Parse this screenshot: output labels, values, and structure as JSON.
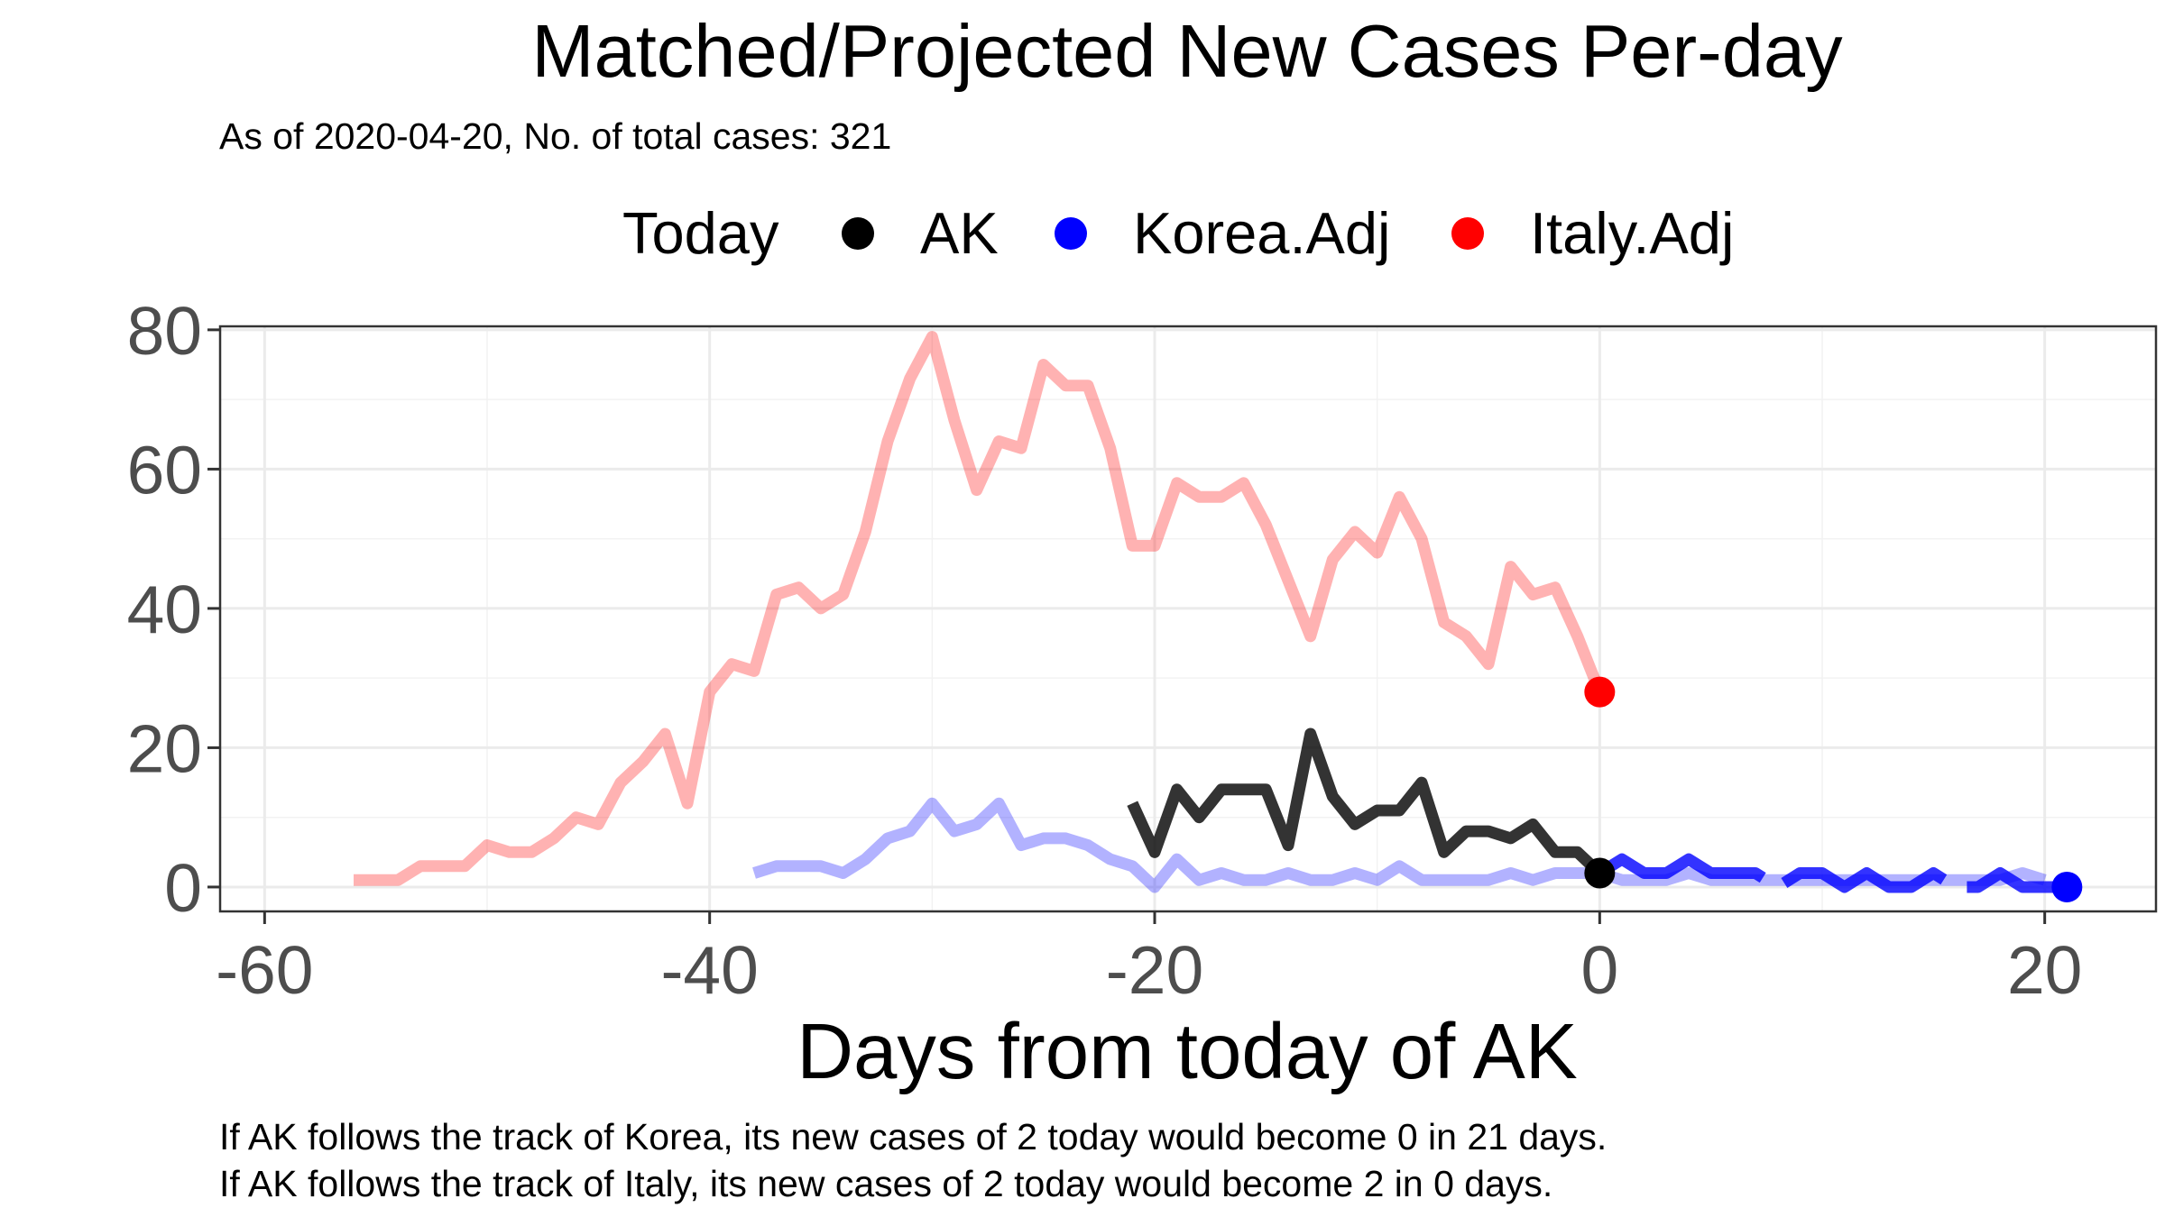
{
  "chart_data": {
    "type": "line",
    "title": "Matched/Projected New Cases Per-day",
    "subtitle": "As of 2020-04-20, No. of total cases: 321",
    "xlabel": "Days from today of AK",
    "ylabel": "",
    "xlim": [
      -62,
      25
    ],
    "ylim": [
      -3.5,
      80.5
    ],
    "x_ticks": [
      -60,
      -40,
      -20,
      0,
      20
    ],
    "x_tick_labels": [
      "-60",
      "-40",
      "-20",
      "0",
      "20"
    ],
    "y_ticks": [
      0,
      20,
      40,
      60,
      80
    ],
    "y_tick_labels": [
      "0",
      "20",
      "40",
      "60",
      "80"
    ],
    "grid": true,
    "legend": {
      "position": "top",
      "title": "Today",
      "entries": [
        {
          "label": "AK",
          "color": "#000000"
        },
        {
          "label": "Korea.Adj",
          "color": "#0000ff"
        },
        {
          "label": "Italy.Adj",
          "color": "#ff0000"
        }
      ]
    },
    "series": [
      {
        "name": "Italy.Adj",
        "color": "#ff0000",
        "opacity": 0.3,
        "x": [
          -56,
          -55,
          -54,
          -53,
          -52,
          -51,
          -50,
          -49,
          -48,
          -47,
          -46,
          -45,
          -44,
          -43,
          -42,
          -41,
          -40,
          -39,
          -38,
          -37,
          -36,
          -35,
          -34,
          -33,
          -32,
          -31,
          -30,
          -29,
          -28,
          -27,
          -26,
          -25,
          -24,
          -23,
          -22,
          -21,
          -20,
          -19,
          -18,
          -17,
          -16,
          -15,
          -14,
          -13,
          -12,
          -11,
          -10,
          -9,
          -8,
          -7,
          -6,
          -5,
          -4,
          -3,
          -2,
          -1,
          0
        ],
        "y": [
          1,
          1,
          1,
          3,
          3,
          3,
          6,
          5,
          5,
          7,
          10,
          9,
          15,
          18,
          22,
          12,
          28,
          32,
          31,
          42,
          43,
          40,
          42,
          51,
          64,
          73,
          79,
          67,
          57,
          64,
          63,
          75,
          72,
          72,
          63,
          49,
          49,
          58,
          56,
          56,
          58,
          52,
          44,
          36,
          47,
          51,
          48,
          56,
          50,
          38,
          36,
          32,
          46,
          42,
          43,
          36,
          28
        ]
      },
      {
        "name": "Korea.Adj",
        "color": "#0000ff",
        "opacity": 0.3,
        "x": [
          -38,
          -37,
          -36,
          -35,
          -34,
          -33,
          -32,
          -31,
          -30,
          -29,
          -28,
          -27,
          -26,
          -25,
          -24,
          -23,
          -22,
          -21,
          -20,
          -19,
          -18,
          -17,
          -16,
          -15,
          -14,
          -13,
          -12,
          -11,
          -10,
          -9,
          -8,
          -7,
          -6,
          -5,
          -4,
          -3,
          -2,
          -1,
          0,
          1,
          2,
          3,
          4,
          5,
          6,
          7,
          8,
          9,
          10,
          11,
          12,
          13,
          14,
          15,
          16,
          17,
          18,
          19,
          20
        ],
        "y": [
          2,
          3,
          3,
          3,
          2,
          4,
          7,
          8,
          12,
          8,
          9,
          12,
          6,
          7,
          7,
          6,
          4,
          3,
          0,
          4,
          1,
          2,
          1,
          1,
          2,
          1,
          1,
          2,
          1,
          3,
          1,
          1,
          1,
          1,
          2,
          1,
          2,
          2,
          2,
          1,
          1,
          1,
          2,
          1,
          1,
          1,
          1,
          1,
          1,
          1,
          1,
          1,
          1,
          1,
          1,
          1,
          1,
          2,
          1
        ]
      },
      {
        "name": "AK",
        "color": "#000000",
        "opacity": 0.8,
        "x": [
          -21,
          -20,
          -19,
          -18,
          -17,
          -16,
          -15,
          -14,
          -13,
          -12,
          -11,
          -10,
          -9,
          -8,
          -7,
          -6,
          -5,
          -4,
          -3,
          -2,
          -1,
          0
        ],
        "y": [
          12,
          5,
          14,
          10,
          14,
          14,
          14,
          6,
          22,
          13,
          9,
          11,
          11,
          15,
          5,
          8,
          8,
          7,
          9,
          5,
          5,
          2
        ]
      },
      {
        "name": "Korea projection",
        "color": "#0000ff",
        "opacity": 0.8,
        "dashed": true,
        "x": [
          0,
          1,
          2,
          3,
          4,
          5,
          6,
          7,
          8,
          9,
          10,
          11,
          12,
          13,
          14,
          15,
          16,
          17,
          18,
          19,
          20,
          21
        ],
        "y": [
          2,
          4,
          2,
          2,
          4,
          2,
          2,
          2,
          0,
          2,
          2,
          0,
          2,
          0,
          0,
          2,
          0,
          0,
          2,
          0,
          0,
          0
        ]
      }
    ],
    "today_points": [
      {
        "series": "AK",
        "x": 0,
        "y": 2,
        "color": "#000000"
      },
      {
        "series": "Korea.Adj",
        "x": 21,
        "y": 0,
        "color": "#0000ff"
      },
      {
        "series": "Italy.Adj",
        "x": 0,
        "y": 28,
        "color": "#ff0000"
      }
    ],
    "caption_lines": [
      "If AK follows the track of Korea, its new cases of 2 today would become 0 in 21 days.",
      "If AK follows the track of Italy, its new cases of 2 today would become 2 in 0 days."
    ]
  }
}
